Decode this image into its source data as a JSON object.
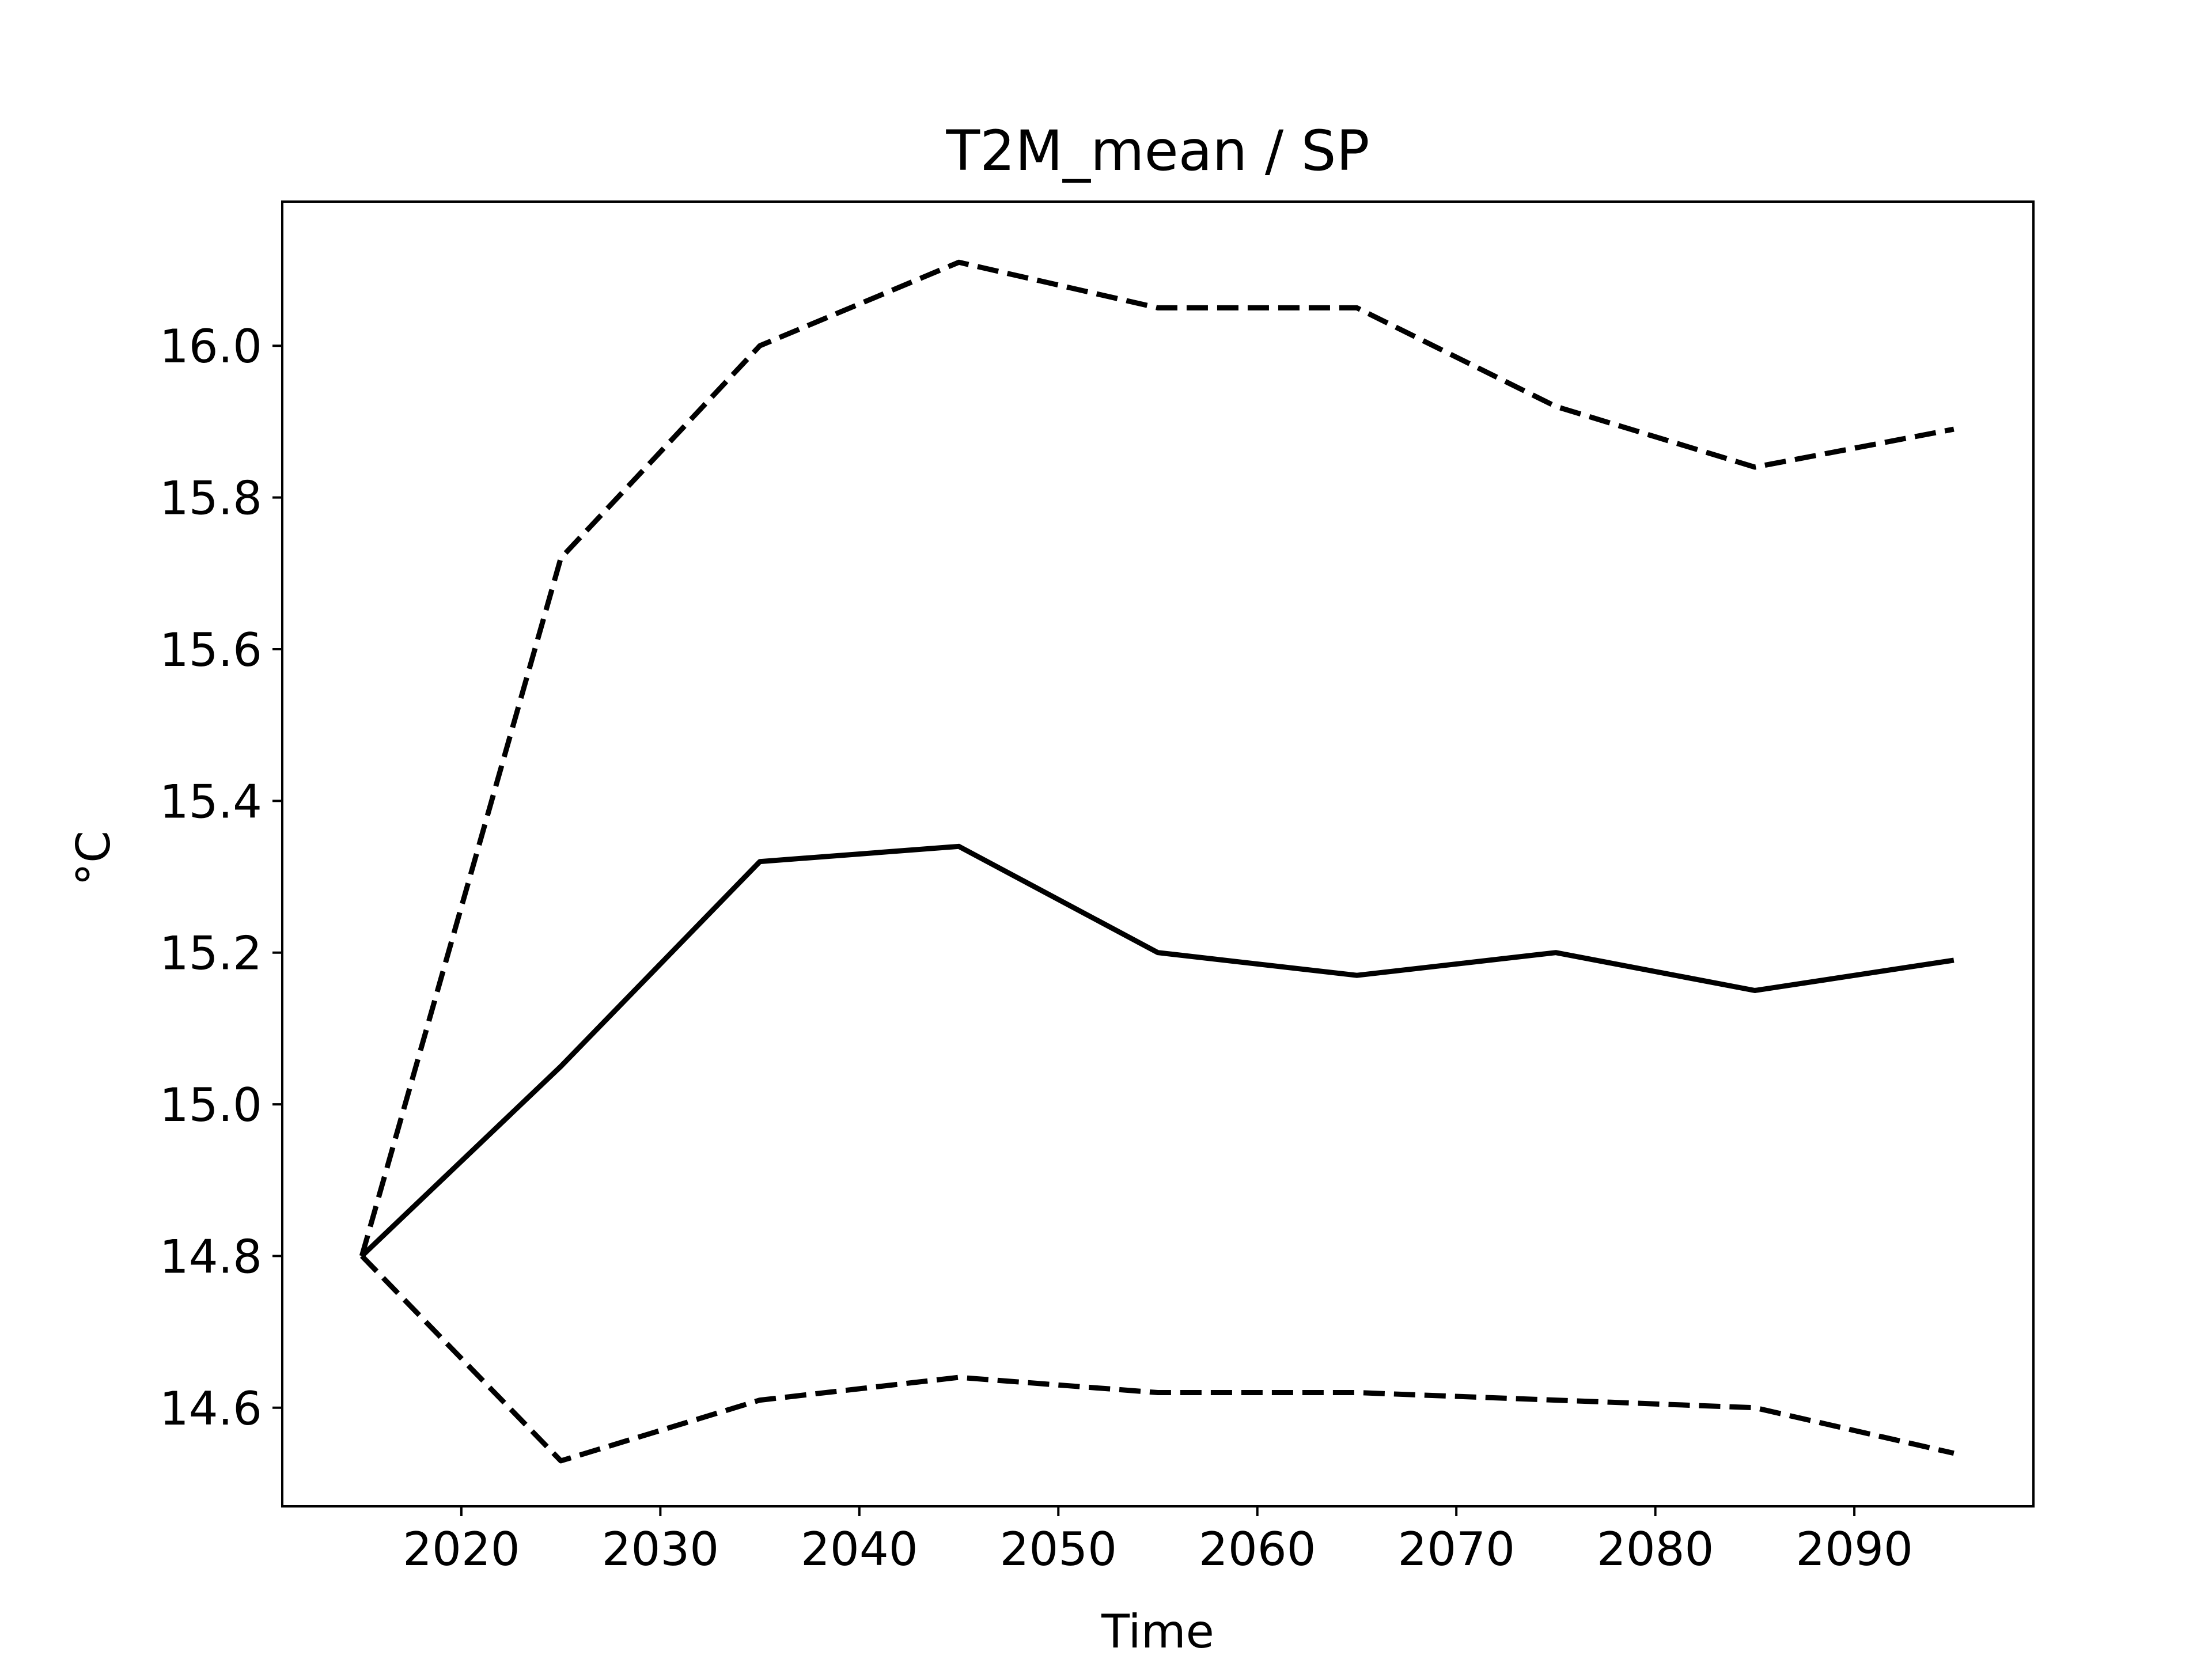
{
  "chart_data": {
    "type": "line",
    "title": "T2M_mean / SP",
    "xlabel": "Time",
    "ylabel": "°C",
    "x": [
      2015,
      2025,
      2035,
      2045,
      2055,
      2065,
      2075,
      2085,
      2095
    ],
    "series": [
      {
        "style": "solid",
        "color": "#000000",
        "values": [
          14.8,
          15.05,
          15.32,
          15.34,
          15.2,
          15.17,
          15.2,
          15.15,
          15.19
        ]
      },
      {
        "style": "dashed",
        "color": "#000000",
        "values": [
          14.8,
          15.72,
          16.0,
          16.11,
          16.05,
          16.05,
          15.92,
          15.84,
          15.89
        ]
      },
      {
        "style": "dashed",
        "color": "#000000",
        "values": [
          14.8,
          14.53,
          14.61,
          14.64,
          14.62,
          14.62,
          14.61,
          14.6,
          14.54
        ]
      }
    ],
    "xlim": [
      2011,
      2099
    ],
    "ylim": [
      14.47,
      16.19
    ],
    "xticks": [
      2020,
      2030,
      2040,
      2050,
      2060,
      2070,
      2080,
      2090
    ],
    "xtick_labels": [
      "2020",
      "2030",
      "2040",
      "2050",
      "2060",
      "2070",
      "2080",
      "2090"
    ],
    "yticks": [
      14.6,
      14.8,
      15.0,
      15.2,
      15.4,
      15.6,
      15.8,
      16.0
    ],
    "ytick_labels": [
      "14.6",
      "14.8",
      "15.0",
      "15.2",
      "15.4",
      "15.6",
      "15.8",
      "16.0"
    ],
    "grid": false,
    "legend": "none"
  }
}
